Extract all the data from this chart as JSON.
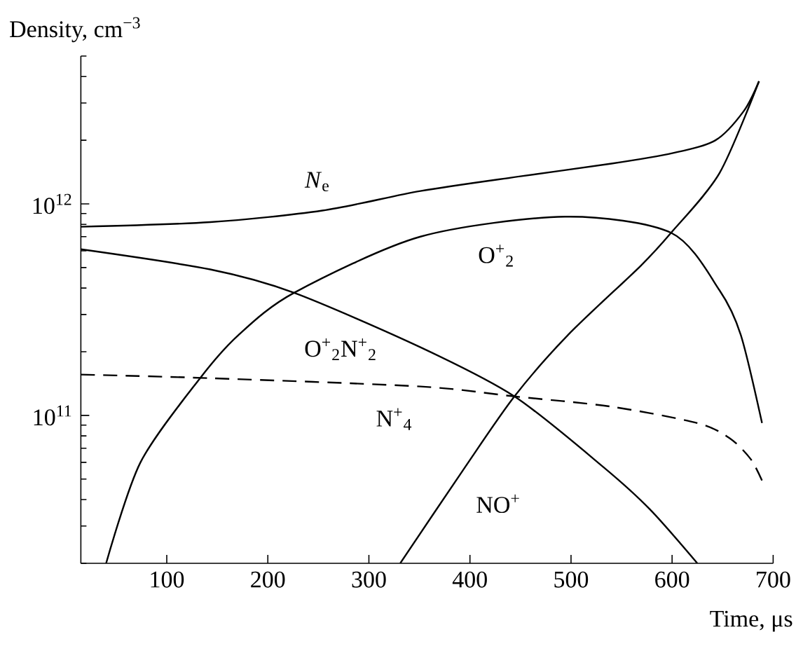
{
  "chart_data": {
    "type": "line",
    "xlabel": "Time, μs",
    "ylabel": "Density, cm$^{−3}$",
    "log": "y",
    "xlim": [
      15,
      700
    ],
    "xticks": [
      100,
      200,
      300,
      400,
      500,
      600,
      700
    ],
    "ylim": [
      20000000000.0,
      5000000000000.0
    ],
    "yticks": [
      {
        "value": 100000000000.0,
        "label": "10$^{11}$"
      },
      {
        "value": 1000000000000.0,
        "label": "10$^{12}$"
      }
    ],
    "grid": false,
    "marker": "none",
    "series": [
      {
        "name": "*N*$_{e}$",
        "color": "#000000",
        "line_style": "solid",
        "x": [
          15,
          143,
          254,
          351,
          450,
          540,
          601,
          643,
          671,
          686
        ],
        "values": [
          780000000000.0,
          820000000000.0,
          930000000000.0,
          1150000000000.0,
          1350000000000.0,
          1550000000000.0,
          1740000000000.0,
          2000000000000.0,
          2750000000000.0,
          3800000000000.0
        ]
      },
      {
        "name": "O$^{+}$$_{2}$",
        "color": "#000000",
        "line_style": "solid",
        "x": [
          40,
          74,
          133,
          171,
          226,
          351,
          494,
          599,
          647,
          668,
          689
        ],
        "values": [
          20000000000.0,
          60000000000.0,
          150000000000.0,
          240000000000.0,
          380000000000.0,
          700000000000.0,
          870000000000.0,
          730000000000.0,
          390000000000.0,
          240000000000.0,
          92000000000.0
        ]
      },
      {
        "name": "N$^{+}$$_{4}$",
        "color": "#000000",
        "line_style": "dashed",
        "x": [
          15,
          143,
          351,
          444,
          540,
          625,
          657,
          678,
          690
        ],
        "values": [
          156000000000.0,
          150000000000.0,
          137000000000.0,
          123000000000.0,
          110000000000.0,
          92000000000.0,
          78000000000.0,
          62000000000.0,
          48000000000.0
        ]
      },
      {
        "name": "O$^{+}$$_{2}$N$^{+}$$_{2}$",
        "color": "#000000",
        "line_style": "solid",
        "x": [
          15,
          143,
          226,
          351,
          444,
          532,
          578,
          625
        ],
        "values": [
          610000000000.0,
          490000000000.0,
          380000000000.0,
          210000000000.0,
          123000000000.0,
          57000000000.0,
          36000000000.0,
          20000000000.0
        ]
      },
      {
        "name": "NO$^{+}$",
        "color": "#000000",
        "line_style": "solid",
        "x": [
          331,
          393,
          444,
          497,
          569,
          599,
          647,
          686
        ],
        "values": [
          20000000000.0,
          55000000000.0,
          123000000000.0,
          240000000000.0,
          510000000000.0,
          730000000000.0,
          1400000000000.0,
          3800000000000.0
        ]
      }
    ]
  }
}
